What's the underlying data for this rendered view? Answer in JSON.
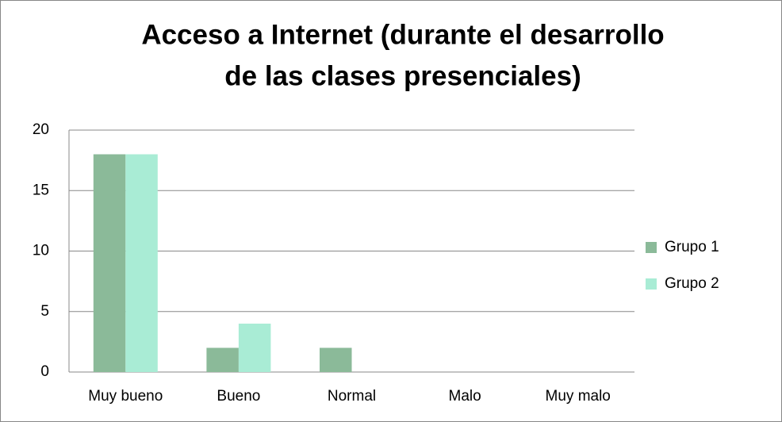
{
  "chart_data": {
    "type": "bar",
    "title": [
      "Acceso a Internet (durante el desarrollo",
      "de las clases presenciales)"
    ],
    "categories": [
      "Muy bueno",
      "Bueno",
      "Normal",
      "Malo",
      "Muy malo"
    ],
    "series": [
      {
        "name": "Grupo 1",
        "color": "#8bba99",
        "values": [
          18,
          2,
          2,
          0,
          0
        ]
      },
      {
        "name": "Grupo 2",
        "color": "#a9ecd5",
        "values": [
          18,
          4,
          0,
          0,
          0
        ]
      }
    ],
    "ylim": [
      0,
      20
    ],
    "yticks": [
      0,
      5,
      10,
      15,
      20
    ],
    "grid": true,
    "legend": "right"
  }
}
